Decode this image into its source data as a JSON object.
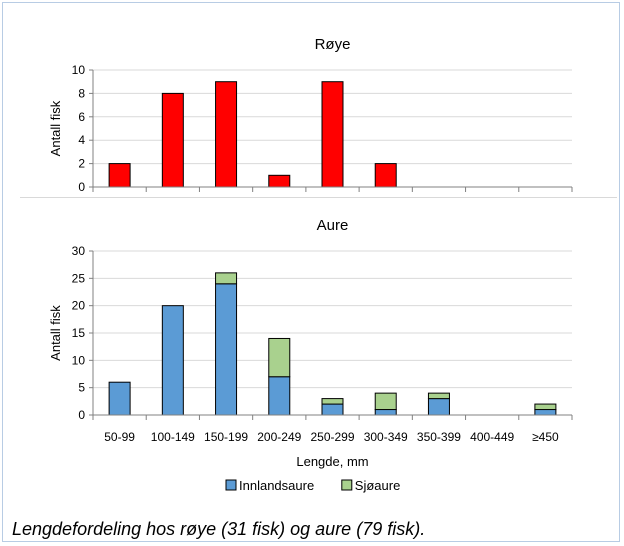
{
  "chart_data": [
    {
      "type": "bar",
      "title": "Røye",
      "ylabel": "Antall fisk",
      "ylim": [
        0,
        10
      ],
      "yticks": [
        0,
        2,
        4,
        6,
        8,
        10
      ],
      "categories": [
        "50-99",
        "100-149",
        "150-199",
        "200-249",
        "250-299",
        "300-349",
        "350-399",
        "400-449",
        "≥450"
      ],
      "series": [
        {
          "color": "#ff0000",
          "values": [
            2,
            8,
            9,
            1,
            9,
            2,
            0,
            0,
            0
          ]
        }
      ]
    },
    {
      "type": "bar",
      "stacked": true,
      "title": "Aure",
      "ylabel": "Antall fisk",
      "xlabel": "Lengde, mm",
      "ylim": [
        0,
        30
      ],
      "yticks": [
        0,
        5,
        10,
        15,
        20,
        25,
        30
      ],
      "categories": [
        "50-99",
        "100-149",
        "150-199",
        "200-249",
        "250-299",
        "300-349",
        "350-399",
        "400-449",
        "≥450"
      ],
      "series": [
        {
          "name": "Innlandsaure",
          "color": "#5b9bd5",
          "values": [
            6,
            20,
            24,
            7,
            2,
            1,
            3,
            0,
            1
          ]
        },
        {
          "name": "Sjøaure",
          "color": "#a9d18e",
          "values": [
            0,
            0,
            2,
            7,
            1,
            3,
            1,
            0,
            1
          ]
        }
      ],
      "legend_position": "bottom"
    }
  ],
  "caption": "Lengdefordeling hos røye (31 fisk) og aure (79 fisk)."
}
